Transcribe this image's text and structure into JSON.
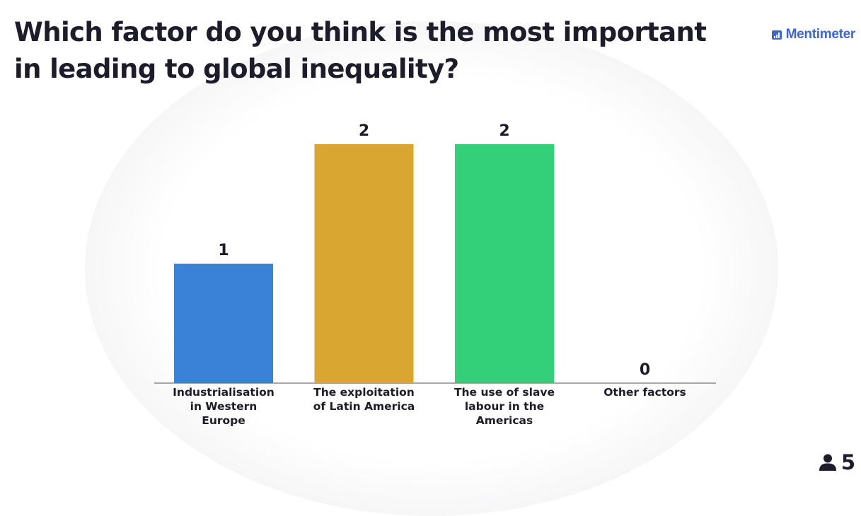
{
  "slide": {
    "title": "Which factor do you think is the most important in leading to global inequality?"
  },
  "brand": {
    "name": "Mentimeter",
    "icon": "mentimeter-logo-icon",
    "color": "#3d65d6"
  },
  "participants": {
    "icon": "person-icon",
    "count": "5"
  },
  "chart_data": {
    "type": "bar",
    "title": "",
    "xlabel": "",
    "ylabel": "",
    "categories": [
      "Industrialisation in Western Europe",
      "The exploitation of Latin America",
      "The use of slave labour in the Americas",
      "Other factors"
    ],
    "category_lines": [
      [
        "Industrialisation",
        "in Western",
        "Europe"
      ],
      [
        "The exploitation",
        "of Latin America"
      ],
      [
        "The use of slave",
        "labour in the",
        "Americas"
      ],
      [
        "Other factors"
      ]
    ],
    "values": [
      1,
      2,
      2,
      0
    ],
    "colors": [
      "#3a82d8",
      "#d9a630",
      "#33cf79",
      "#9b6fd6"
    ],
    "ylim": [
      0,
      2
    ],
    "grid": false,
    "legend": "none",
    "data_labels": true
  }
}
